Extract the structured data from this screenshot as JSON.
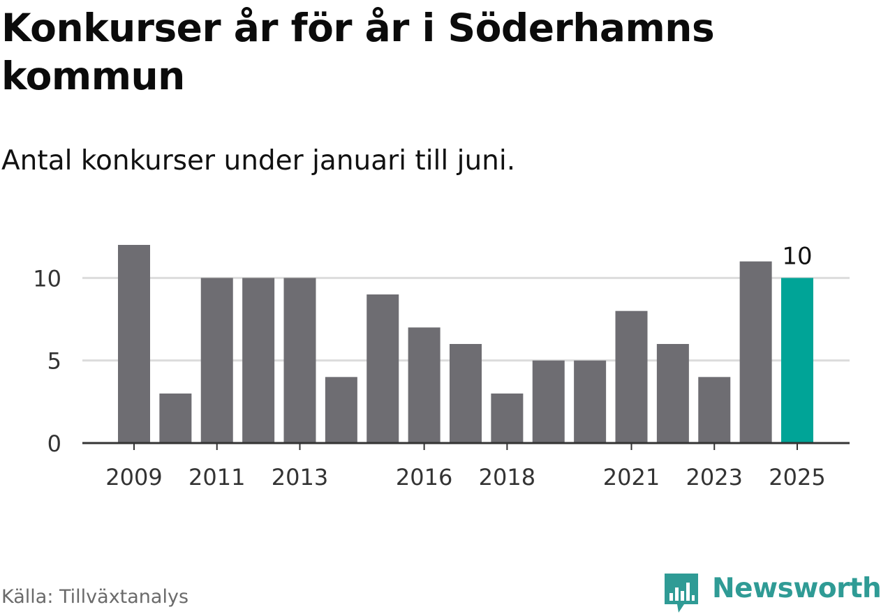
{
  "header": {
    "title": "Konkurser år för år i Söderhamns kommun",
    "subtitle": "Antal konkurser under januari till juni."
  },
  "footer": {
    "source": "Källa: Tillväxtanalys",
    "brand": "Newsworthy",
    "brand_icon": "bar-chart-speech-bubble-icon"
  },
  "colors": {
    "bar": "#6e6d72",
    "highlight": "#00a497",
    "grid": "#dcdcdc",
    "axis": "#333333",
    "brand": "#2f9b95"
  },
  "chart_data": {
    "type": "bar",
    "categories": [
      "2009",
      "2010",
      "2011",
      "2012",
      "2013",
      "2014",
      "2015",
      "2016",
      "2017",
      "2018",
      "2019",
      "2020",
      "2021",
      "2022",
      "2023",
      "2024",
      "2025"
    ],
    "values": [
      12,
      3,
      10,
      10,
      10,
      4,
      9,
      7,
      6,
      3,
      5,
      5,
      8,
      6,
      4,
      11,
      10
    ],
    "x_tick_labels": [
      "2009",
      "2011",
      "2013",
      "2016",
      "2018",
      "2021",
      "2023",
      "2025"
    ],
    "y_ticks": [
      0,
      5,
      10
    ],
    "ylim": [
      0,
      12
    ],
    "highlight": {
      "category": "2025",
      "value": 10,
      "label": "10"
    },
    "grid": true,
    "legend": "none"
  }
}
